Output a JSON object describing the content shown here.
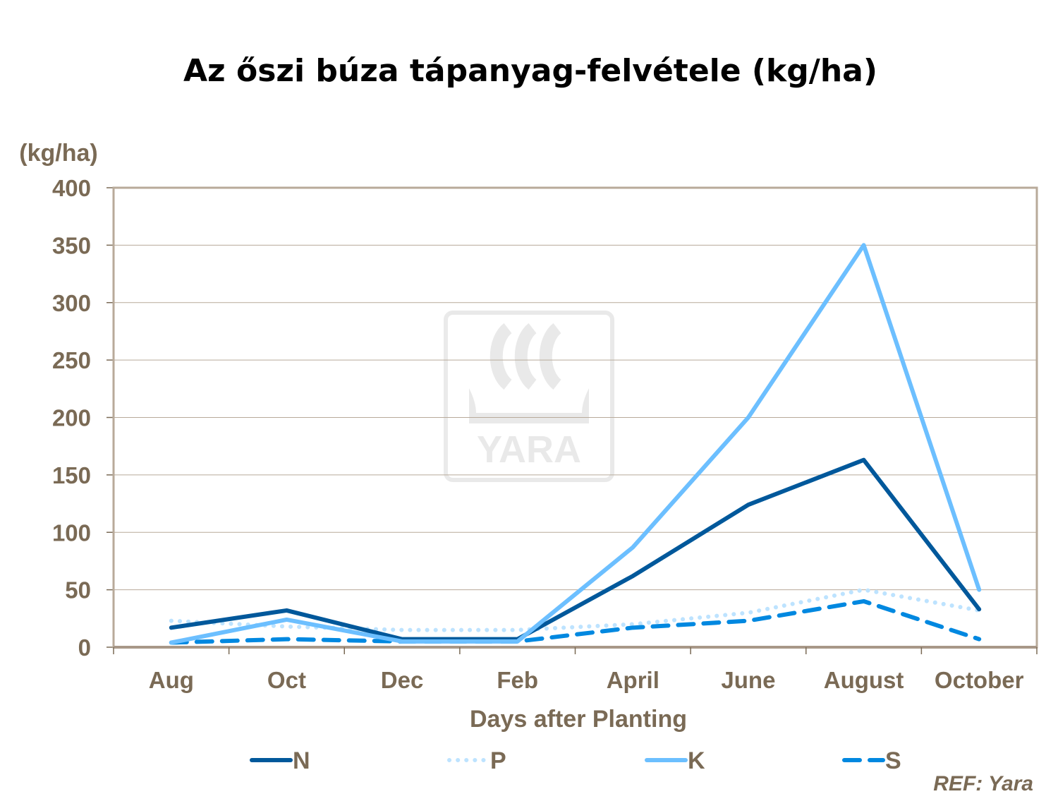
{
  "chart_data": {
    "type": "line",
    "title": "Az őszi búza tápanyag-felvétele (kg/ha)",
    "ylabel": "(kg/ha)",
    "xlabel": "Days after Planting",
    "categories": [
      "Aug",
      "Oct",
      "Dec",
      "Feb",
      "April",
      "June",
      "August",
      "October"
    ],
    "ylim": [
      0,
      400
    ],
    "yticks": [
      0,
      50,
      100,
      150,
      200,
      250,
      300,
      350,
      400
    ],
    "grid": true,
    "legend_position": "bottom",
    "series": [
      {
        "name": "N",
        "style": "solid",
        "color": "#00589b",
        "values": [
          17,
          32,
          7,
          7,
          62,
          124,
          163,
          33
        ]
      },
      {
        "name": "P",
        "style": "dotted",
        "color": "#bde3ff",
        "values": [
          23,
          18,
          15,
          15,
          20,
          30,
          50,
          32
        ]
      },
      {
        "name": "K",
        "style": "solid",
        "color": "#6cbfff",
        "values": [
          4,
          24,
          5,
          5,
          87,
          200,
          350,
          50
        ]
      },
      {
        "name": "S",
        "style": "dashed",
        "color": "#0088e0",
        "values": [
          4,
          7,
          5,
          5,
          17,
          23,
          40,
          7
        ]
      }
    ],
    "watermark": "YARA",
    "reference": "REF: Yara"
  }
}
